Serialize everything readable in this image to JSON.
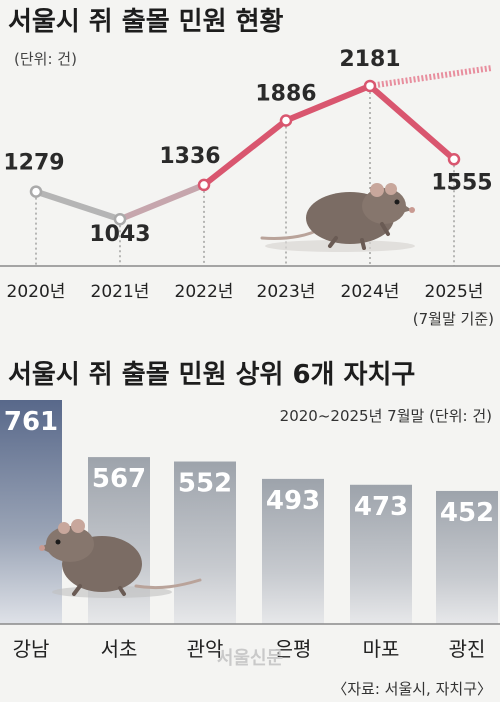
{
  "chart_data": [
    {
      "type": "line",
      "title": "서울시 쥐 출몰 민원 현황",
      "unit": "(단위: 건)",
      "categories": [
        "2020년",
        "2021년",
        "2022년",
        "2023년",
        "2024년",
        "2025년"
      ],
      "values": [
        1279,
        1043,
        1336,
        1886,
        2181,
        1555
      ],
      "note": "(7월말 기준)",
      "ylim": [
        900,
        2300
      ],
      "colors": {
        "early": "#b5b5b5",
        "late": "#d9566f"
      }
    },
    {
      "type": "bar",
      "title": "서울시 쥐 출몰 민원 상위 6개 자치구",
      "subtitle": "2020~2025년 7월말  (단위: 건)",
      "categories": [
        "강남",
        "서초",
        "관악",
        "은평",
        "마포",
        "광진"
      ],
      "values": [
        761,
        567,
        552,
        493,
        473,
        452
      ],
      "ylim": [
        0,
        761
      ],
      "colors": {
        "top": "#5d6d86",
        "other": "#a9aeb5"
      }
    }
  ],
  "source": "〈자료: 서울시, 자치구〉",
  "watermark": "서울신문"
}
